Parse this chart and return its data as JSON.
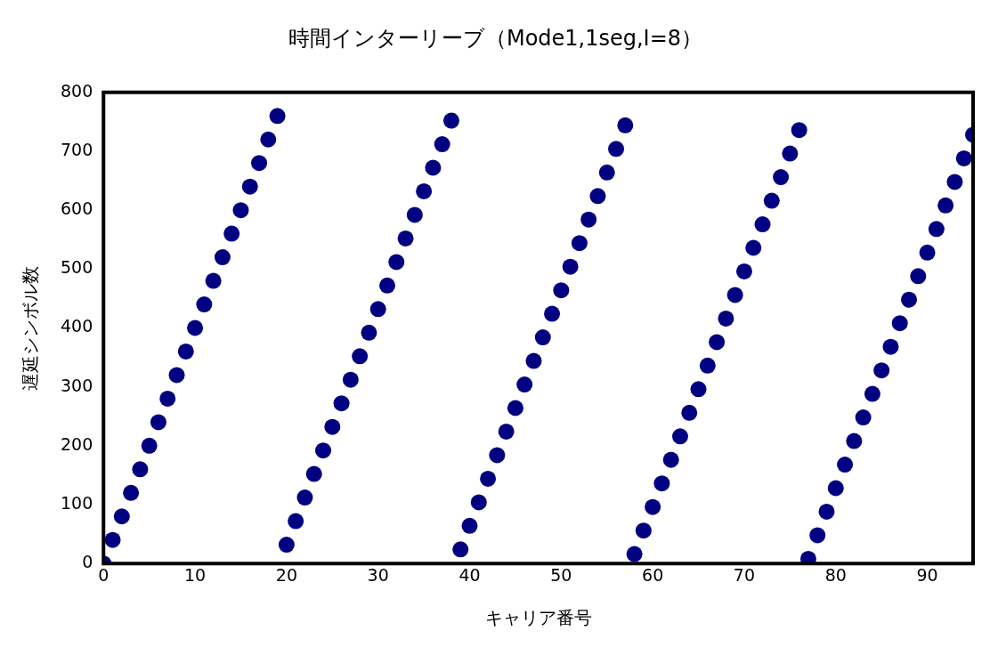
{
  "chart_data": {
    "type": "scatter",
    "title": "時間インターリーブ（Mode1,1seg,I=8）",
    "xlabel": "キャリア番号",
    "ylabel": "遅延シンボル数",
    "x": [
      0,
      1,
      2,
      3,
      4,
      5,
      6,
      7,
      8,
      9,
      10,
      11,
      12,
      13,
      14,
      15,
      16,
      17,
      18,
      19,
      20,
      21,
      22,
      23,
      24,
      25,
      26,
      27,
      28,
      29,
      30,
      31,
      32,
      33,
      34,
      35,
      36,
      37,
      38,
      39,
      40,
      41,
      42,
      43,
      44,
      45,
      46,
      47,
      48,
      49,
      50,
      51,
      52,
      53,
      54,
      55,
      56,
      57,
      58,
      59,
      60,
      61,
      62,
      63,
      64,
      65,
      66,
      67,
      68,
      69,
      70,
      71,
      72,
      73,
      74,
      75,
      76,
      77,
      78,
      79,
      80,
      81,
      82,
      83,
      84,
      85,
      86,
      87,
      88,
      89,
      90,
      91,
      92,
      93,
      94,
      95
    ],
    "series": [
      {
        "color": "#000080",
        "values": [
          0,
          40,
          80,
          120,
          160,
          200,
          240,
          280,
          320,
          360,
          400,
          440,
          480,
          520,
          560,
          600,
          640,
          680,
          720,
          760,
          32,
          72,
          112,
          152,
          192,
          232,
          272,
          312,
          352,
          392,
          432,
          472,
          512,
          552,
          592,
          632,
          672,
          712,
          752,
          24,
          64,
          104,
          144,
          184,
          224,
          264,
          304,
          344,
          384,
          424,
          464,
          504,
          544,
          584,
          624,
          664,
          704,
          744,
          16,
          56,
          96,
          136,
          176,
          216,
          256,
          296,
          336,
          376,
          416,
          456,
          496,
          536,
          576,
          616,
          656,
          696,
          736,
          8,
          48,
          88,
          128,
          168,
          208,
          248,
          288,
          328,
          368,
          408,
          448,
          488,
          528,
          568,
          608,
          648,
          688,
          728
        ]
      }
    ],
    "xlim": [
      0,
      95
    ],
    "xticks": [
      0,
      10,
      20,
      30,
      40,
      50,
      60,
      70,
      80,
      90
    ],
    "ylim": [
      0,
      800
    ],
    "yticks": [
      0,
      100,
      200,
      300,
      400,
      500,
      600,
      700,
      800
    ],
    "grid": false,
    "legend": false,
    "marker": "circle"
  }
}
